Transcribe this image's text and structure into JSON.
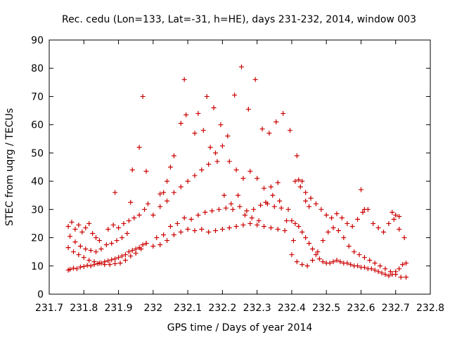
{
  "chart_data": {
    "type": "scatter",
    "title": "Rec. cedu (Lon=133, Lat=-31, h=HE), days 231-232, 2014, window 003",
    "xlabel": "GPS time / Days of year 2014",
    "ylabel": "STEC from uqrg / TECUs",
    "xlim": [
      231.7,
      232.8
    ],
    "ylim": [
      0,
      90
    ],
    "xticks": [
      "231.7",
      "231.8",
      "231.9",
      "232",
      "232.1",
      "232.2",
      "232.3",
      "232.4",
      "232.5",
      "232.6",
      "232.7",
      "232.8"
    ],
    "yticks": [
      "0",
      "10",
      "20",
      "30",
      "40",
      "50",
      "60",
      "70",
      "80",
      "90"
    ],
    "grid": false,
    "legend": "none",
    "marker": "+",
    "color": "#cc0000",
    "series": [
      {
        "x": [
          231.755,
          231.76,
          231.77,
          231.78,
          231.79,
          231.8,
          231.81,
          231.82,
          231.83,
          231.84,
          231.85,
          231.86,
          231.87,
          231.88,
          231.89,
          231.9,
          231.91,
          231.92,
          231.93,
          231.94,
          231.95,
          231.96,
          231.97,
          231.98,
          231.755,
          231.77,
          231.785,
          231.8,
          231.815,
          231.83,
          231.845,
          231.86,
          231.875,
          231.89,
          231.905,
          231.92,
          231.935,
          231.95,
          231.965,
          231.98,
          231.755,
          231.765,
          231.775,
          231.785,
          231.795,
          231.805,
          231.815,
          231.825,
          231.835,
          231.845,
          231.76,
          231.775,
          231.79,
          231.805,
          231.82,
          231.835,
          231.85,
          231.865,
          231.88,
          231.895,
          231.91,
          231.925,
          231.87,
          231.885,
          231.9,
          231.915,
          231.93,
          231.945,
          231.96,
          231.975,
          231.985,
          231.89,
          231.935,
          231.94,
          231.96,
          231.97,
          231.98
        ],
        "y": [
          8.5,
          8.8,
          9.2,
          9.0,
          9.6,
          9.8,
          10.2,
          10.0,
          10.5,
          10.8,
          11.0,
          11.5,
          11.8,
          12.2,
          12.5,
          13.0,
          13.5,
          14.0,
          15.0,
          15.5,
          16.0,
          16.5,
          17.5,
          18.0,
          16.5,
          15.0,
          14.0,
          13.0,
          12.0,
          11.5,
          11.0,
          10.5,
          10.5,
          10.8,
          11.0,
          12.0,
          13.5,
          14.5,
          16.0,
          18.0,
          24.0,
          25.5,
          23.0,
          24.5,
          22.0,
          23.5,
          25.0,
          21.5,
          20.0,
          19.0,
          20.5,
          18.5,
          17.0,
          16.0,
          15.5,
          15.0,
          16.0,
          17.5,
          18.0,
          19.0,
          20.0,
          21.5,
          23.0,
          24.5,
          23.5,
          25.0,
          26.0,
          27.0,
          28.0,
          30.0,
          32.0,
          36.0,
          32.5,
          44.0,
          52.0,
          70.0,
          43.5
        ]
      },
      {
        "x": [
          232.0,
          232.02,
          232.04,
          232.06,
          232.08,
          232.1,
          232.12,
          232.14,
          232.16,
          232.18,
          232.2,
          232.22,
          232.24,
          232.26,
          232.28,
          232.3,
          232.32,
          232.34,
          232.36,
          232.38,
          232.01,
          232.03,
          232.05,
          232.07,
          232.09,
          232.11,
          232.13,
          232.15,
          232.17,
          232.19,
          232.21,
          232.23,
          232.25,
          232.27,
          232.29,
          232.31,
          232.33,
          232.35,
          232.37,
          232.39,
          232.0,
          232.02,
          232.04,
          232.06,
          232.08,
          232.1,
          232.12,
          232.14,
          232.16,
          232.18,
          232.2,
          232.22,
          232.24,
          232.26,
          232.28,
          232.3,
          232.32,
          232.34,
          232.36,
          232.02,
          232.04,
          232.06,
          232.09,
          232.12,
          232.145,
          232.165,
          232.185,
          232.205,
          232.225,
          232.245,
          232.265,
          232.285,
          232.305,
          232.325,
          232.345,
          232.365,
          232.385,
          232.405,
          232.03,
          232.05,
          232.08,
          232.095,
          232.13,
          232.155,
          232.175,
          232.195,
          232.215,
          232.235,
          232.255,
          232.275,
          232.295,
          232.315,
          232.335,
          232.355,
          232.375,
          232.395,
          232.415
        ],
        "y": [
          17.0,
          17.5,
          19.0,
          21.0,
          22.0,
          23.0,
          22.5,
          23.0,
          22.0,
          22.5,
          23.0,
          23.5,
          24.0,
          24.5,
          25.0,
          24.5,
          24.0,
          23.5,
          23.0,
          22.5,
          20.0,
          21.0,
          24.0,
          25.0,
          27.0,
          26.5,
          28.0,
          29.0,
          29.5,
          30.0,
          30.5,
          30.0,
          31.0,
          29.5,
          30.0,
          31.5,
          32.0,
          31.0,
          30.5,
          30.0,
          28.0,
          31.0,
          33.0,
          36.0,
          38.0,
          40.0,
          42.0,
          44.0,
          46.0,
          50.0,
          52.5,
          47.0,
          44.0,
          41.0,
          43.5,
          41.0,
          37.5,
          38.0,
          39.5,
          35.5,
          40.0,
          49.0,
          76.0,
          57.0,
          58.0,
          52.0,
          47.0,
          35.0,
          32.0,
          35.0,
          28.0,
          27.0,
          26.0,
          32.5,
          35.0,
          33.0,
          26.0,
          19.0,
          36.0,
          45.0,
          60.5,
          63.5,
          64.0,
          70.0,
          66.0,
          60.0,
          56.0,
          70.5,
          80.5,
          65.5,
          76.0,
          58.5,
          57.0,
          61.0,
          64.0,
          58.0,
          49.0
        ]
      },
      {
        "x": [
          232.4,
          232.41,
          232.42,
          232.43,
          232.44,
          232.45,
          232.46,
          232.47,
          232.48,
          232.49,
          232.5,
          232.51,
          232.52,
          232.53,
          232.54,
          232.55,
          232.56,
          232.57,
          232.58,
          232.59,
          232.6,
          232.61,
          232.62,
          232.63,
          232.64,
          232.65,
          232.66,
          232.67,
          232.68,
          232.69,
          232.7,
          232.71,
          232.72,
          232.73,
          232.4,
          232.415,
          232.43,
          232.445,
          232.46,
          232.475,
          232.49,
          232.505,
          232.52,
          232.535,
          232.55,
          232.565,
          232.58,
          232.595,
          232.61,
          232.625,
          232.64,
          232.655,
          232.67,
          232.685,
          232.7,
          232.715,
          232.73,
          232.41,
          232.425,
          232.44,
          232.455,
          232.47,
          232.485,
          232.5,
          232.515,
          232.53,
          232.545,
          232.56,
          232.575,
          232.59,
          232.605,
          232.62,
          232.635,
          232.65,
          232.665,
          232.68,
          232.695,
          232.71,
          232.725,
          232.42,
          232.43,
          232.44,
          232.45,
          232.6,
          232.61,
          232.69,
          232.7,
          232.71
        ],
        "y": [
          26.0,
          25.0,
          24.0,
          22.0,
          20.0,
          18.0,
          16.0,
          14.0,
          12.5,
          11.5,
          11.0,
          11.0,
          11.5,
          12.0,
          11.5,
          11.0,
          11.0,
          10.5,
          10.0,
          10.0,
          9.5,
          9.5,
          9.0,
          9.0,
          8.5,
          8.0,
          7.5,
          7.0,
          6.5,
          7.0,
          8.0,
          9.0,
          10.5,
          11.0,
          14.0,
          11.5,
          10.5,
          10.0,
          12.0,
          15.0,
          19.0,
          22.0,
          23.5,
          22.5,
          20.0,
          17.0,
          15.0,
          14.0,
          13.0,
          12.0,
          11.0,
          10.0,
          9.0,
          8.0,
          7.0,
          6.0,
          6.0,
          40.0,
          38.0,
          36.0,
          34.0,
          32.0,
          30.0,
          28.0,
          27.0,
          28.5,
          27.0,
          25.0,
          24.0,
          26.5,
          29.0,
          30.0,
          25.0,
          23.5,
          22.0,
          25.0,
          26.5,
          23.0,
          20.0,
          40.5,
          40.0,
          33.0,
          31.0,
          37.0,
          30.0,
          29.0,
          28.0,
          27.5
        ]
      }
    ]
  }
}
